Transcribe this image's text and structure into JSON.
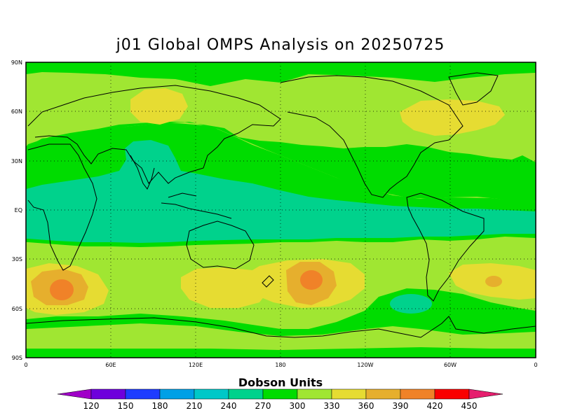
{
  "title": "j01 Global OMPS Analysis on 20250725",
  "colorbar": {
    "title": "Dobson Units",
    "levels": [
      "120",
      "150",
      "180",
      "210",
      "240",
      "270",
      "300",
      "330",
      "360",
      "390",
      "420",
      "450"
    ],
    "colors": [
      "#a000c8",
      "#6e00dc",
      "#1e3cff",
      "#00a0e6",
      "#00c8c8",
      "#00d28c",
      "#00dc00",
      "#a0e632",
      "#e6dc32",
      "#e6af2d",
      "#f08228",
      "#fa0000",
      "#e61e6e"
    ]
  },
  "map": {
    "lat_labels": [
      "90N",
      "60N",
      "30N",
      "EQ",
      "30S",
      "60S",
      "90S"
    ],
    "lon_labels": [
      "0",
      "60E",
      "120E",
      "180",
      "120W",
      "60W",
      "0"
    ],
    "field_colors": {
      "c300": "#00dc00",
      "c270": "#00d28c",
      "c330": "#a0e632",
      "c360": "#e6dc32",
      "c390": "#e6af2d",
      "c420": "#f08228"
    }
  }
}
